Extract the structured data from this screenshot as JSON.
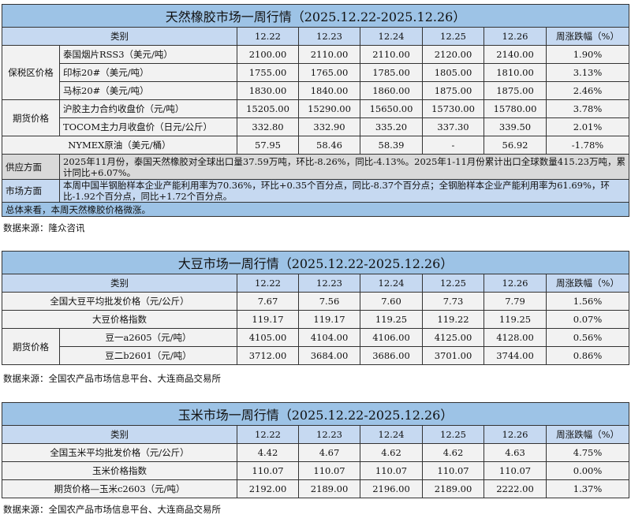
{
  "rubber": {
    "title": "天然橡胶市场一周行情（2025.12.22-2025.12.26）",
    "headers": [
      "类别",
      "12.22",
      "12.23",
      "12.24",
      "12.25",
      "12.26",
      "周涨跌幅（%）"
    ],
    "group_bonded": "保税区价格",
    "group_futures": "期货价格",
    "rows": [
      {
        "label": "泰国烟片RSS3（美元/吨）",
        "v": [
          "2100.00",
          "2110.00",
          "2110.00",
          "2120.00",
          "2140.00",
          "1.90%"
        ]
      },
      {
        "label": "印标20#（美元/吨）",
        "v": [
          "1755.00",
          "1765.00",
          "1785.00",
          "1805.00",
          "1810.00",
          "3.13%"
        ]
      },
      {
        "label": "马标20#（美元/吨）",
        "v": [
          "1830.00",
          "1840.00",
          "1860.00",
          "1875.00",
          "1875.00",
          "2.46%"
        ]
      },
      {
        "label": "沪胶主力合约收盘价（元/吨）",
        "v": [
          "15205.00",
          "15290.00",
          "15650.00",
          "15730.00",
          "15780.00",
          "3.78%"
        ]
      },
      {
        "label": "TOCOM主力月收盘价（日元/公斤）",
        "v": [
          "332.80",
          "332.90",
          "335.20",
          "337.30",
          "339.50",
          "2.01%"
        ]
      },
      {
        "label": "NYMEX原油（美元/桶）",
        "v": [
          "57.95",
          "58.46",
          "58.39",
          "-",
          "56.92",
          "-1.78%"
        ]
      }
    ],
    "supply_label": "供应方面",
    "supply_text": "2025年11月份，泰国天然橡胶对全球出口量37.59万吨，环比-8.26%，同比-4.13%。2025年1-11月份累计出口全球数量415.23万吨，累计同比+6.07%。",
    "market_label": "市场方面",
    "market_text": "本周中国半钢胎样本企业产能利用率为70.36%，环比+0.35个百分点，同比-8.37个百分点；全钢胎样本企业产能利用率为61.69%，环比-1.92个百分点，同比+1.72个百分点。",
    "summary": "总体来看，本周天然橡胶价格微涨。",
    "source": "数据来源：隆众咨讯"
  },
  "soy": {
    "title": "大豆市场一周行情（2025.12.22-2025.12.26）",
    "headers": [
      "类别",
      "12.22",
      "12.23",
      "12.24",
      "12.25",
      "12.26",
      "周涨跌幅（%）"
    ],
    "group_futures": "期货价格",
    "rows": [
      {
        "label": "全国大豆平均批发价格（元/公斤）",
        "v": [
          "7.67",
          "7.56",
          "7.60",
          "7.73",
          "7.79",
          "1.56%"
        ]
      },
      {
        "label": "大豆价格指数",
        "v": [
          "119.17",
          "119.17",
          "119.25",
          "119.22",
          "119.25",
          "0.07%"
        ]
      },
      {
        "label": "豆一a2605（元/吨）",
        "v": [
          "4105.00",
          "4104.00",
          "4106.00",
          "4125.00",
          "4128.00",
          "0.56%"
        ]
      },
      {
        "label": "豆二b2601（元/吨）",
        "v": [
          "3712.00",
          "3684.00",
          "3686.00",
          "3701.00",
          "3744.00",
          "0.86%"
        ]
      }
    ],
    "source": "数据来源：全国农产品市场信息平台、大连商品交易所"
  },
  "corn": {
    "title": "玉米市场一周行情（2025.12.22-2025.12.26）",
    "headers": [
      "类别",
      "12.22",
      "12.23",
      "12.24",
      "12.25",
      "12.26",
      "周涨跌幅（%）"
    ],
    "rows": [
      {
        "label": "全国玉米平均批发价格（元/公斤）",
        "v": [
          "4.42",
          "4.67",
          "4.62",
          "4.62",
          "4.63",
          "4.75%"
        ]
      },
      {
        "label": "玉米价格指数",
        "v": [
          "110.07",
          "110.07",
          "110.07",
          "110.07",
          "110.07",
          "0.00%"
        ]
      },
      {
        "label": "期货价格—玉米c2603（元/吨）",
        "v": [
          "2192.00",
          "2189.00",
          "2196.00",
          "2189.00",
          "2222.00",
          "1.37%"
        ]
      }
    ],
    "source": "数据来源：全国农产品市场信息平台、大连商品交易所"
  }
}
